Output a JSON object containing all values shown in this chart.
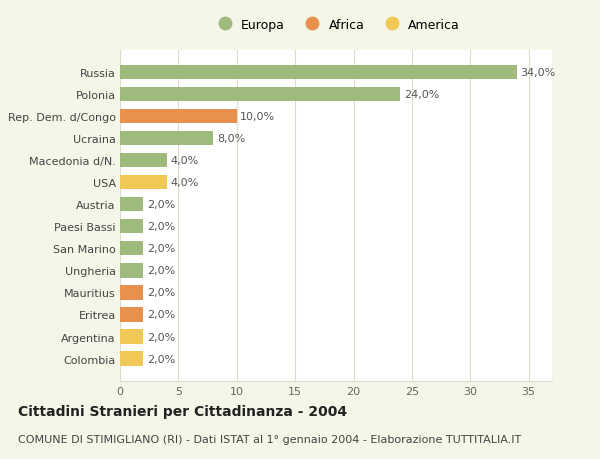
{
  "categories": [
    "Colombia",
    "Argentina",
    "Eritrea",
    "Mauritius",
    "Ungheria",
    "San Marino",
    "Paesi Bassi",
    "Austria",
    "USA",
    "Macedonia d/N.",
    "Ucraina",
    "Rep. Dem. d/Congo",
    "Polonia",
    "Russia"
  ],
  "values": [
    2.0,
    2.0,
    2.0,
    2.0,
    2.0,
    2.0,
    2.0,
    2.0,
    4.0,
    4.0,
    8.0,
    10.0,
    24.0,
    34.0
  ],
  "colors": [
    "#f0c857",
    "#f0c857",
    "#e8914e",
    "#e8914e",
    "#9eba7c",
    "#9eba7c",
    "#9eba7c",
    "#9eba7c",
    "#f0c857",
    "#9eba7c",
    "#9eba7c",
    "#e8914e",
    "#9eba7c",
    "#9eba7c"
  ],
  "labels": [
    "2,0%",
    "2,0%",
    "2,0%",
    "2,0%",
    "2,0%",
    "2,0%",
    "2,0%",
    "2,0%",
    "4,0%",
    "4,0%",
    "8,0%",
    "10,0%",
    "24,0%",
    "34,0%"
  ],
  "legend_labels": [
    "Europa",
    "Africa",
    "America"
  ],
  "legend_colors": [
    "#9eba7c",
    "#e8914e",
    "#f0c857"
  ],
  "title": "Cittadini Stranieri per Cittadinanza - 2004",
  "subtitle": "COMUNE DI STIMIGLIANO (RI) - Dati ISTAT al 1° gennaio 2004 - Elaborazione TUTTITALIA.IT",
  "xlim": [
    0,
    37
  ],
  "xticks": [
    0,
    5,
    10,
    15,
    20,
    25,
    30,
    35
  ],
  "background_color": "#f5f5e8",
  "plot_bg_color": "#ffffff",
  "grid_color": "#ddddcc",
  "title_fontsize": 10,
  "subtitle_fontsize": 8,
  "label_fontsize": 8,
  "tick_fontsize": 8,
  "legend_fontsize": 9
}
